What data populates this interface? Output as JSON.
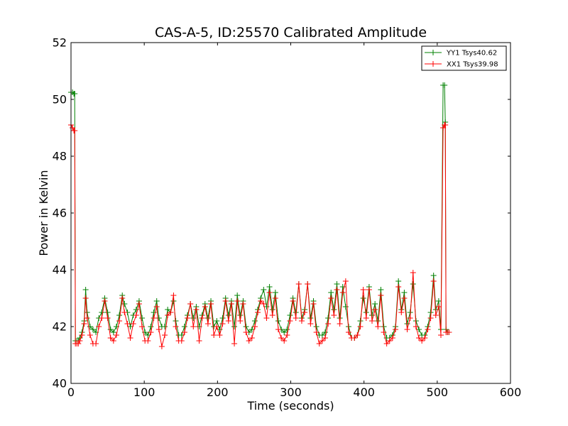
{
  "chart_data": {
    "type": "line",
    "title": "CAS-A-5, ID:25570 Calibrated Amplitude",
    "xlabel": "Time (seconds)",
    "ylabel": "Power in Kelvin",
    "xlim": [
      0,
      600
    ],
    "ylim": [
      40,
      52
    ],
    "xticks": [
      0,
      100,
      200,
      300,
      400,
      500,
      600
    ],
    "yticks": [
      40,
      42,
      44,
      46,
      48,
      50,
      52
    ],
    "grid": false,
    "legend": "top-right",
    "marker": "plus",
    "series": [
      {
        "name": "YY1 Tsys40.62",
        "color": "#008000",
        "points": [
          [
            0,
            50.25
          ],
          [
            2,
            50.25
          ],
          [
            4,
            50.2
          ],
          [
            5,
            50.2
          ],
          [
            6,
            41.5
          ],
          [
            8,
            41.5
          ],
          [
            10,
            41.5
          ],
          [
            12,
            41.6
          ],
          [
            15,
            41.8
          ],
          [
            18,
            42.2
          ],
          [
            20,
            43.3
          ],
          [
            22,
            42.5
          ],
          [
            26,
            42.0
          ],
          [
            30,
            41.9
          ],
          [
            34,
            41.8
          ],
          [
            38,
            42.3
          ],
          [
            42,
            42.5
          ],
          [
            46,
            43.0
          ],
          [
            50,
            42.5
          ],
          [
            54,
            41.9
          ],
          [
            58,
            41.8
          ],
          [
            62,
            42.0
          ],
          [
            66,
            42.4
          ],
          [
            70,
            43.1
          ],
          [
            73,
            42.8
          ],
          [
            77,
            42.5
          ],
          [
            81,
            42.0
          ],
          [
            85,
            42.4
          ],
          [
            89,
            42.6
          ],
          [
            93,
            42.9
          ],
          [
            97,
            42.3
          ],
          [
            101,
            41.8
          ],
          [
            105,
            41.7
          ],
          [
            109,
            42.0
          ],
          [
            113,
            42.5
          ],
          [
            117,
            42.9
          ],
          [
            120,
            42.3
          ],
          [
            124,
            42.0
          ],
          [
            128,
            42.0
          ],
          [
            132,
            42.6
          ],
          [
            136,
            42.5
          ],
          [
            140,
            42.9
          ],
          [
            143,
            42.2
          ],
          [
            147,
            41.7
          ],
          [
            151,
            41.7
          ],
          [
            155,
            42.0
          ],
          [
            159,
            42.4
          ],
          [
            163,
            42.8
          ],
          [
            167,
            42.3
          ],
          [
            171,
            42.7
          ],
          [
            175,
            42.0
          ],
          [
            179,
            42.4
          ],
          [
            183,
            42.8
          ],
          [
            187,
            42.3
          ],
          [
            191,
            42.9
          ],
          [
            195,
            42.0
          ],
          [
            199,
            42.2
          ],
          [
            203,
            41.9
          ],
          [
            207,
            42.3
          ],
          [
            211,
            43.0
          ],
          [
            215,
            42.4
          ],
          [
            219,
            42.9
          ],
          [
            223,
            42.0
          ],
          [
            227,
            43.1
          ],
          [
            231,
            42.4
          ],
          [
            235,
            42.9
          ],
          [
            239,
            42.0
          ],
          [
            243,
            41.8
          ],
          [
            247,
            41.9
          ],
          [
            251,
            42.2
          ],
          [
            255,
            42.6
          ],
          [
            259,
            43.0
          ],
          [
            263,
            43.3
          ],
          [
            267,
            42.7
          ],
          [
            271,
            43.4
          ],
          [
            275,
            42.6
          ],
          [
            279,
            43.2
          ],
          [
            283,
            42.2
          ],
          [
            287,
            41.9
          ],
          [
            291,
            41.8
          ],
          [
            295,
            41.9
          ],
          [
            299,
            42.4
          ],
          [
            303,
            43.0
          ],
          [
            307,
            42.5
          ],
          [
            311,
            43.5
          ],
          [
            315,
            42.3
          ],
          [
            319,
            42.6
          ],
          [
            323,
            43.5
          ],
          [
            327,
            42.3
          ],
          [
            331,
            42.9
          ],
          [
            335,
            42.0
          ],
          [
            339,
            41.7
          ],
          [
            343,
            41.7
          ],
          [
            347,
            41.8
          ],
          [
            351,
            42.3
          ],
          [
            355,
            43.2
          ],
          [
            359,
            42.6
          ],
          [
            363,
            43.5
          ],
          [
            367,
            42.3
          ],
          [
            371,
            43.4
          ],
          [
            375,
            42.7
          ],
          [
            379,
            42.0
          ],
          [
            383,
            41.6
          ],
          [
            387,
            41.6
          ],
          [
            391,
            41.7
          ],
          [
            395,
            42.2
          ],
          [
            399,
            43.0
          ],
          [
            403,
            42.5
          ],
          [
            407,
            43.4
          ],
          [
            411,
            42.4
          ],
          [
            415,
            42.8
          ],
          [
            419,
            42.2
          ],
          [
            423,
            43.3
          ],
          [
            427,
            42.0
          ],
          [
            431,
            41.6
          ],
          [
            435,
            41.6
          ],
          [
            439,
            41.7
          ],
          [
            443,
            42.0
          ],
          [
            447,
            43.6
          ],
          [
            451,
            42.6
          ],
          [
            455,
            43.2
          ],
          [
            459,
            42.1
          ],
          [
            463,
            42.5
          ],
          [
            467,
            43.5
          ],
          [
            471,
            42.2
          ],
          [
            475,
            41.9
          ],
          [
            479,
            41.7
          ],
          [
            483,
            41.7
          ],
          [
            487,
            42.0
          ],
          [
            491,
            42.5
          ],
          [
            495,
            43.8
          ],
          [
            498,
            42.6
          ],
          [
            502,
            42.9
          ],
          [
            505,
            41.9
          ],
          [
            508,
            50.5
          ],
          [
            510,
            50.5
          ],
          [
            511,
            49.2
          ],
          [
            512,
            41.9
          ],
          [
            514,
            41.8
          ],
          [
            516,
            41.8
          ]
        ]
      },
      {
        "name": "XX1 Tsys39.98",
        "color": "#ff0000",
        "points": [
          [
            0,
            49.1
          ],
          [
            2,
            49.0
          ],
          [
            4,
            48.9
          ],
          [
            5,
            48.9
          ],
          [
            6,
            41.4
          ],
          [
            8,
            41.4
          ],
          [
            10,
            41.4
          ],
          [
            12,
            41.5
          ],
          [
            15,
            41.7
          ],
          [
            18,
            42.1
          ],
          [
            20,
            43.0
          ],
          [
            22,
            42.3
          ],
          [
            26,
            41.7
          ],
          [
            30,
            41.4
          ],
          [
            34,
            41.4
          ],
          [
            38,
            42.0
          ],
          [
            42,
            42.3
          ],
          [
            46,
            42.9
          ],
          [
            50,
            42.3
          ],
          [
            54,
            41.6
          ],
          [
            58,
            41.5
          ],
          [
            62,
            41.7
          ],
          [
            66,
            42.2
          ],
          [
            70,
            43.0
          ],
          [
            73,
            42.5
          ],
          [
            77,
            42.1
          ],
          [
            81,
            41.6
          ],
          [
            85,
            42.1
          ],
          [
            89,
            42.4
          ],
          [
            93,
            42.8
          ],
          [
            97,
            42.0
          ],
          [
            101,
            41.5
          ],
          [
            105,
            41.5
          ],
          [
            109,
            41.8
          ],
          [
            113,
            42.3
          ],
          [
            117,
            42.7
          ],
          [
            120,
            41.9
          ],
          [
            124,
            41.3
          ],
          [
            128,
            41.7
          ],
          [
            132,
            42.4
          ],
          [
            136,
            42.5
          ],
          [
            140,
            43.1
          ],
          [
            143,
            42.0
          ],
          [
            147,
            41.5
          ],
          [
            151,
            41.5
          ],
          [
            155,
            41.8
          ],
          [
            159,
            42.3
          ],
          [
            163,
            42.8
          ],
          [
            167,
            42.0
          ],
          [
            171,
            42.6
          ],
          [
            175,
            41.5
          ],
          [
            179,
            42.3
          ],
          [
            183,
            42.7
          ],
          [
            187,
            42.1
          ],
          [
            191,
            42.8
          ],
          [
            195,
            41.7
          ],
          [
            199,
            42.0
          ],
          [
            203,
            41.7
          ],
          [
            207,
            42.1
          ],
          [
            211,
            42.9
          ],
          [
            215,
            42.2
          ],
          [
            219,
            42.8
          ],
          [
            223,
            41.4
          ],
          [
            227,
            42.9
          ],
          [
            231,
            42.2
          ],
          [
            235,
            42.8
          ],
          [
            239,
            41.8
          ],
          [
            243,
            41.5
          ],
          [
            247,
            41.6
          ],
          [
            251,
            42.0
          ],
          [
            255,
            42.5
          ],
          [
            259,
            42.9
          ],
          [
            263,
            42.8
          ],
          [
            267,
            42.3
          ],
          [
            271,
            43.2
          ],
          [
            275,
            42.4
          ],
          [
            279,
            43.0
          ],
          [
            283,
            41.9
          ],
          [
            287,
            41.6
          ],
          [
            291,
            41.5
          ],
          [
            295,
            41.7
          ],
          [
            299,
            42.2
          ],
          [
            303,
            42.9
          ],
          [
            307,
            42.3
          ],
          [
            311,
            43.5
          ],
          [
            315,
            42.2
          ],
          [
            319,
            42.5
          ],
          [
            323,
            43.5
          ],
          [
            327,
            42.1
          ],
          [
            331,
            42.8
          ],
          [
            335,
            41.8
          ],
          [
            339,
            41.4
          ],
          [
            343,
            41.5
          ],
          [
            347,
            41.6
          ],
          [
            351,
            42.1
          ],
          [
            355,
            43.0
          ],
          [
            359,
            42.4
          ],
          [
            363,
            43.3
          ],
          [
            367,
            42.1
          ],
          [
            371,
            43.2
          ],
          [
            375,
            43.6
          ],
          [
            379,
            41.8
          ],
          [
            383,
            41.6
          ],
          [
            387,
            41.6
          ],
          [
            391,
            41.7
          ],
          [
            395,
            42.0
          ],
          [
            399,
            43.3
          ],
          [
            403,
            42.3
          ],
          [
            407,
            43.3
          ],
          [
            411,
            42.2
          ],
          [
            415,
            42.6
          ],
          [
            419,
            42.0
          ],
          [
            423,
            43.1
          ],
          [
            427,
            41.8
          ],
          [
            431,
            41.4
          ],
          [
            435,
            41.5
          ],
          [
            439,
            41.6
          ],
          [
            443,
            41.9
          ],
          [
            447,
            43.4
          ],
          [
            451,
            42.5
          ],
          [
            455,
            43.0
          ],
          [
            459,
            41.9
          ],
          [
            463,
            42.3
          ],
          [
            467,
            43.9
          ],
          [
            471,
            42.0
          ],
          [
            475,
            41.6
          ],
          [
            479,
            41.5
          ],
          [
            483,
            41.6
          ],
          [
            487,
            41.9
          ],
          [
            491,
            42.3
          ],
          [
            495,
            43.6
          ],
          [
            498,
            42.4
          ],
          [
            502,
            42.7
          ],
          [
            505,
            41.7
          ],
          [
            508,
            49.0
          ],
          [
            510,
            49.1
          ],
          [
            511,
            49.1
          ],
          [
            512,
            41.8
          ],
          [
            514,
            41.8
          ],
          [
            516,
            41.8
          ]
        ]
      }
    ]
  }
}
